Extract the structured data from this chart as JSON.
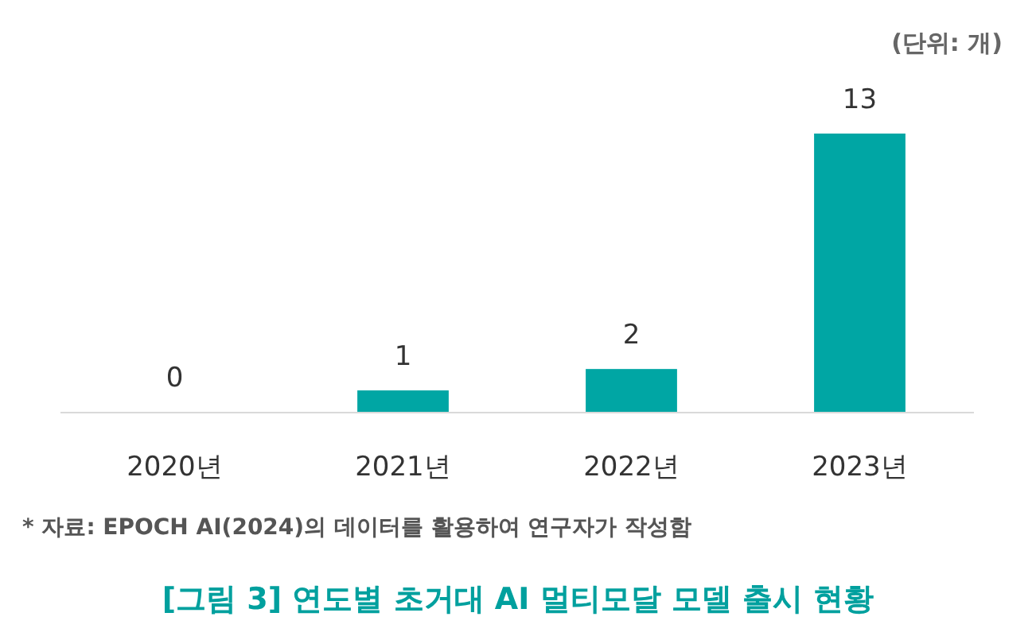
{
  "chart_data": {
    "type": "bar",
    "title": "[그림 3] 연도별 초거대 AI 멀티모달 모델 출시 현황",
    "categories": [
      "2020년",
      "2021년",
      "2022년",
      "2023년"
    ],
    "values": [
      0,
      1,
      2,
      13
    ],
    "color": "#00a6a4",
    "data_labels": true,
    "annotations": [
      "(단위: 개)",
      "* 자료: EPOCH AI(2024)의 데이터를 활용하여 연구자가 작성함"
    ]
  }
}
